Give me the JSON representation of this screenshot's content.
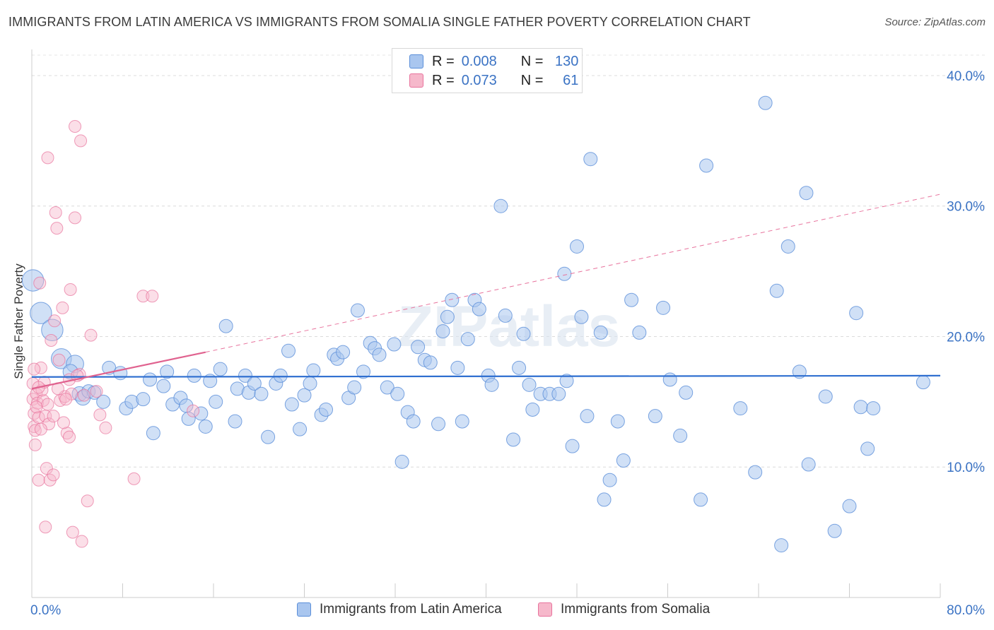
{
  "title": "IMMIGRANTS FROM LATIN AMERICA VS IMMIGRANTS FROM SOMALIA SINGLE FATHER POVERTY CORRELATION CHART",
  "source": "Source: ZipAtlas.com",
  "watermark": "ZIPatlas",
  "legend": {
    "r_label": "R =",
    "n_label": "N =",
    "rows": [
      {
        "r": "0.008",
        "n": "130",
        "color": "#a9c6ef"
      },
      {
        "r": "0.073",
        "n": "61",
        "color": "#f6b8cb"
      }
    ]
  },
  "bottom_legend": [
    {
      "label": "Immigrants from Latin America",
      "color": "#a9c6ef"
    },
    {
      "label": "Immigrants from Somalia",
      "color": "#f6b8cb"
    }
  ],
  "chart_data": {
    "type": "scatter",
    "title": "IMMIGRANTS FROM LATIN AMERICA VS IMMIGRANTS FROM SOMALIA SINGLE FATHER POVERTY CORRELATION CHART",
    "xlabel": "",
    "ylabel": "Single Father Poverty",
    "xlim": [
      0,
      80
    ],
    "ylim": [
      0,
      42
    ],
    "x_tick_labels": [
      "0.0%",
      "80.0%"
    ],
    "y_tick_labels": [
      "10.0%",
      "20.0%",
      "30.0%",
      "40.0%"
    ],
    "y_ticks": [
      10,
      20,
      30,
      40
    ],
    "grid": "horizontal dashed",
    "legend_position": "top-center",
    "series": [
      {
        "name": "Immigrants from Latin America",
        "color": "#5b8fd9",
        "fill": "#a9c6ef",
        "trend": {
          "x": [
            0,
            80
          ],
          "y": [
            16.9,
            17.0
          ]
        },
        "points": [
          [
            0.1,
            24.3,
            1.6
          ],
          [
            0.8,
            21.8,
            1.6
          ],
          [
            1.8,
            20.5,
            1.6
          ],
          [
            2.6,
            18.3,
            1.5
          ],
          [
            3.8,
            17.9,
            1.3
          ],
          [
            3.4,
            17.3,
            1.1
          ],
          [
            4.2,
            15.6,
            1.1
          ],
          [
            4.5,
            15.3,
            1.1
          ],
          [
            5.0,
            15.8,
            1.0
          ],
          [
            5.5,
            15.7,
            1.0
          ],
          [
            6.3,
            15.0,
            1.0
          ],
          [
            6.8,
            17.6,
            1.0
          ],
          [
            7.8,
            17.2,
            1.0
          ],
          [
            8.3,
            14.5,
            1.0
          ],
          [
            8.8,
            15.0,
            1.0
          ],
          [
            9.8,
            15.2,
            1.0
          ],
          [
            10.4,
            16.7,
            1.0
          ],
          [
            10.7,
            12.6,
            1.0
          ],
          [
            11.6,
            16.2,
            1.0
          ],
          [
            11.9,
            17.3,
            1.0
          ],
          [
            12.4,
            14.8,
            1.0
          ],
          [
            13.1,
            15.3,
            1.0
          ],
          [
            13.6,
            14.7,
            1.0
          ],
          [
            13.8,
            13.7,
            1.0
          ],
          [
            14.3,
            17.0,
            1.0
          ],
          [
            14.9,
            14.1,
            1.0
          ],
          [
            15.3,
            13.1,
            1.0
          ],
          [
            15.7,
            16.6,
            1.0
          ],
          [
            16.2,
            15.0,
            1.0
          ],
          [
            16.6,
            17.5,
            1.0
          ],
          [
            17.1,
            20.8,
            1.0
          ],
          [
            17.9,
            13.5,
            1.0
          ],
          [
            18.1,
            16.0,
            1.0
          ],
          [
            18.8,
            17.0,
            1.0
          ],
          [
            19.1,
            15.7,
            1.0
          ],
          [
            19.6,
            16.4,
            1.0
          ],
          [
            20.2,
            15.6,
            1.0
          ],
          [
            20.8,
            12.3,
            1.0
          ],
          [
            21.5,
            16.4,
            1.0
          ],
          [
            21.9,
            17.0,
            1.0
          ],
          [
            22.6,
            18.9,
            1.0
          ],
          [
            22.9,
            14.8,
            1.0
          ],
          [
            23.6,
            12.9,
            1.0
          ],
          [
            24.0,
            15.5,
            1.0
          ],
          [
            24.5,
            16.4,
            1.0
          ],
          [
            24.8,
            17.4,
            1.0
          ],
          [
            25.5,
            14.0,
            1.0
          ],
          [
            25.9,
            14.4,
            1.0
          ],
          [
            26.6,
            18.6,
            1.0
          ],
          [
            26.9,
            18.3,
            1.0
          ],
          [
            27.4,
            18.8,
            1.0
          ],
          [
            27.9,
            15.3,
            1.0
          ],
          [
            28.4,
            16.1,
            1.0
          ],
          [
            28.7,
            22.0,
            1.0
          ],
          [
            29.2,
            17.3,
            1.0
          ],
          [
            29.8,
            19.5,
            1.0
          ],
          [
            30.2,
            19.1,
            1.0
          ],
          [
            30.6,
            18.6,
            1.0
          ],
          [
            31.3,
            16.1,
            1.0
          ],
          [
            31.9,
            19.4,
            1.0
          ],
          [
            32.2,
            15.6,
            1.0
          ],
          [
            32.6,
            10.4,
            1.0
          ],
          [
            33.1,
            14.2,
            1.0
          ],
          [
            33.6,
            13.5,
            1.0
          ],
          [
            34.0,
            19.2,
            1.0
          ],
          [
            34.6,
            18.2,
            1.0
          ],
          [
            35.1,
            18.0,
            1.0
          ],
          [
            35.8,
            13.3,
            1.0
          ],
          [
            36.2,
            20.4,
            1.0
          ],
          [
            36.6,
            21.5,
            1.0
          ],
          [
            37.0,
            22.8,
            1.0
          ],
          [
            37.5,
            17.6,
            1.0
          ],
          [
            37.9,
            13.5,
            1.0
          ],
          [
            38.4,
            19.8,
            1.0
          ],
          [
            39.0,
            22.8,
            1.0
          ],
          [
            39.4,
            22.1,
            1.0
          ],
          [
            40.2,
            17.0,
            1.0
          ],
          [
            40.5,
            16.3,
            1.0
          ],
          [
            41.3,
            30.0,
            1.0
          ],
          [
            41.7,
            21.6,
            1.0
          ],
          [
            42.4,
            12.1,
            1.0
          ],
          [
            42.9,
            17.6,
            1.0
          ],
          [
            43.3,
            20.2,
            1.0
          ],
          [
            43.8,
            16.3,
            1.0
          ],
          [
            44.1,
            14.4,
            1.0
          ],
          [
            44.8,
            15.6,
            1.0
          ],
          [
            45.6,
            15.6,
            1.0
          ],
          [
            46.4,
            15.6,
            1.0
          ],
          [
            46.9,
            24.8,
            1.0
          ],
          [
            47.1,
            16.6,
            1.0
          ],
          [
            47.6,
            11.6,
            1.0
          ],
          [
            48.0,
            26.9,
            1.0
          ],
          [
            48.4,
            21.5,
            1.0
          ],
          [
            48.9,
            13.9,
            1.0
          ],
          [
            49.2,
            33.6,
            1.0
          ],
          [
            50.1,
            20.3,
            1.0
          ],
          [
            50.4,
            7.5,
            1.0
          ],
          [
            50.9,
            9.0,
            1.0
          ],
          [
            51.6,
            13.5,
            1.0
          ],
          [
            52.1,
            10.5,
            1.0
          ],
          [
            52.8,
            22.8,
            1.0
          ],
          [
            53.5,
            20.3,
            1.0
          ],
          [
            54.9,
            13.9,
            1.0
          ],
          [
            55.6,
            22.2,
            1.0
          ],
          [
            56.2,
            16.7,
            1.0
          ],
          [
            57.1,
            12.4,
            1.0
          ],
          [
            57.6,
            15.7,
            1.0
          ],
          [
            58.9,
            7.5,
            1.0
          ],
          [
            59.4,
            33.1,
            1.0
          ],
          [
            62.4,
            14.5,
            1.0
          ],
          [
            63.7,
            9.6,
            1.0
          ],
          [
            64.6,
            37.9,
            1.0
          ],
          [
            65.6,
            23.5,
            1.0
          ],
          [
            66.0,
            4.0,
            1.0
          ],
          [
            66.6,
            26.9,
            1.0
          ],
          [
            67.6,
            17.3,
            1.0
          ],
          [
            68.2,
            31.0,
            1.0
          ],
          [
            68.4,
            10.2,
            1.0
          ],
          [
            69.9,
            15.4,
            1.0
          ],
          [
            70.7,
            5.1,
            1.0
          ],
          [
            72.0,
            7.0,
            1.0
          ],
          [
            72.6,
            21.8,
            1.0
          ],
          [
            73.0,
            14.6,
            1.0
          ],
          [
            73.6,
            11.4,
            1.0
          ],
          [
            74.1,
            14.5,
            1.0
          ],
          [
            78.5,
            16.5,
            1.0
          ]
        ]
      },
      {
        "name": "Immigrants from Somalia",
        "color": "#e8739d",
        "fill": "#f6b8cb",
        "trend": {
          "x": [
            0,
            15.3
          ],
          "y": [
            16.0,
            18.8
          ]
        },
        "trend_extended": {
          "x": [
            15.3,
            80
          ],
          "y": [
            18.8,
            30.9
          ]
        },
        "points": [
          [
            0.1,
            16.4
          ],
          [
            0.1,
            15.2
          ],
          [
            0.2,
            14.1
          ],
          [
            0.2,
            13.1
          ],
          [
            0.3,
            12.8
          ],
          [
            0.3,
            11.7
          ],
          [
            0.4,
            15.6
          ],
          [
            0.5,
            14.9
          ],
          [
            0.6,
            13.8
          ],
          [
            0.6,
            9.0
          ],
          [
            0.7,
            24.1
          ],
          [
            0.8,
            17.6
          ],
          [
            1.0,
            15.1
          ],
          [
            1.2,
            13.9
          ],
          [
            1.2,
            5.4
          ],
          [
            1.3,
            9.9
          ],
          [
            1.4,
            33.7
          ],
          [
            1.5,
            13.3
          ],
          [
            1.6,
            9.0
          ],
          [
            1.9,
            9.4
          ],
          [
            2.0,
            21.2
          ],
          [
            2.1,
            29.5
          ],
          [
            2.2,
            28.3
          ],
          [
            2.4,
            18.2
          ],
          [
            2.5,
            15.1
          ],
          [
            2.7,
            22.2
          ],
          [
            2.9,
            15.4
          ],
          [
            3.1,
            12.6
          ],
          [
            3.3,
            16.7
          ],
          [
            3.3,
            12.3
          ],
          [
            3.4,
            23.6
          ],
          [
            3.5,
            15.6
          ],
          [
            3.6,
            5.0
          ],
          [
            3.8,
            36.1
          ],
          [
            3.8,
            29.1
          ],
          [
            4.2,
            17.1
          ],
          [
            4.3,
            35.0
          ],
          [
            4.4,
            4.3
          ],
          [
            4.6,
            15.5
          ],
          [
            4.9,
            7.4
          ],
          [
            5.2,
            20.1
          ],
          [
            5.7,
            15.8
          ],
          [
            6.0,
            14.0
          ],
          [
            6.5,
            13.0
          ],
          [
            9.0,
            9.1
          ],
          [
            9.8,
            23.1
          ],
          [
            10.6,
            23.1
          ],
          [
            14.2,
            14.3
          ],
          [
            0.9,
            15.9
          ],
          [
            1.1,
            16.5
          ],
          [
            0.4,
            14.6
          ],
          [
            2.8,
            13.4
          ],
          [
            1.7,
            19.7
          ],
          [
            0.2,
            17.5
          ],
          [
            1.9,
            13.9
          ],
          [
            0.6,
            16.1
          ],
          [
            3.0,
            15.2
          ],
          [
            1.4,
            14.8
          ],
          [
            2.3,
            16.0
          ],
          [
            0.8,
            12.9
          ],
          [
            4.0,
            17.0
          ]
        ]
      }
    ]
  }
}
